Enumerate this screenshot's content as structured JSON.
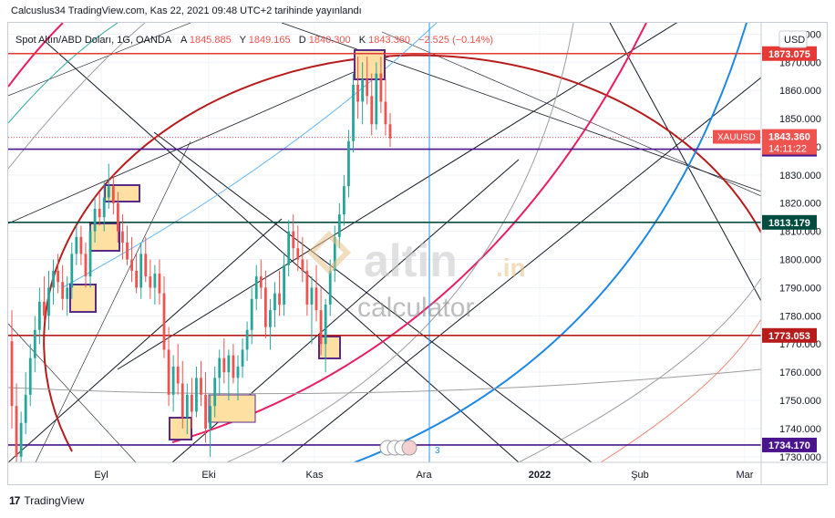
{
  "header": {
    "published_line": "Calcuslus34 TradingView.com, Kas 22, 2021 09:48 UTC+2 tarihinde yayınlandı"
  },
  "legend": {
    "symbol": "Spot Altın/ABD Doları, 1G, OANDA",
    "open_label": "A",
    "open_value": "1845.885",
    "high_label": "Y",
    "high_value": "1849.165",
    "low_label": "D",
    "low_value": "1840.300",
    "close_label": "K",
    "close_value": "1843.360",
    "change": "−2.525 (−0.14%)"
  },
  "currency_button": "USD",
  "watermark": {
    "brand": "altin",
    "domain": ".in",
    "sub": "calculator"
  },
  "footer": {
    "brand": "TradingView",
    "logo": "17"
  },
  "marker_label": "3",
  "colors": {
    "up": "#26a69a",
    "down": "#ef5350",
    "red_line": "#e53935",
    "purple_line": "#4a148c",
    "teal_line": "#004d40",
    "darkred_line": "#b71c1c",
    "gann_circle": "#b71c1c",
    "box_fill": "#ffe0a3",
    "box_stroke": "#5b2a86",
    "blue_arc": "#1e88e5",
    "pink_arc": "#e91e63"
  },
  "chart_data": {
    "type": "candlestick",
    "symbol": "XAUUSD",
    "ylim": [
      1728,
      1884
    ],
    "y_ticks": [
      1730,
      1740,
      1750,
      1760,
      1770,
      1780,
      1790,
      1800,
      1810,
      1820,
      1830,
      1840,
      1850,
      1860,
      1870,
      1880
    ],
    "x_ticks": [
      "Eyl",
      "Eki",
      "Kas",
      "Ara",
      "2022",
      "Şub",
      "Mar"
    ],
    "horizontal_levels": [
      {
        "value": 1873.075,
        "label": "1873.075",
        "color": "#e53935"
      },
      {
        "value": 1839.145,
        "label": "1839.145",
        "color": "#4a148c"
      },
      {
        "value": 1813.179,
        "label": "1813.179",
        "color": "#004d40"
      },
      {
        "value": 1773.053,
        "label": "1773.053",
        "color": "#b71c1c"
      },
      {
        "value": 1734.17,
        "label": "1734.170",
        "color": "#4a148c"
      }
    ],
    "last_price": {
      "symbol_label": "XAUUSD",
      "value": "1843.360",
      "countdown": "14:11:22"
    },
    "candles": [
      [
        1771,
        1782,
        1740,
        1748
      ],
      [
        1748,
        1756,
        1725,
        1730
      ],
      [
        1730,
        1746,
        1722,
        1742
      ],
      [
        1742,
        1760,
        1738,
        1752
      ],
      [
        1752,
        1770,
        1748,
        1765
      ],
      [
        1765,
        1780,
        1760,
        1775
      ],
      [
        1775,
        1790,
        1770,
        1785
      ],
      [
        1785,
        1794,
        1778,
        1780
      ],
      [
        1780,
        1796,
        1775,
        1790
      ],
      [
        1790,
        1800,
        1784,
        1796
      ],
      [
        1796,
        1802,
        1788,
        1792
      ],
      [
        1792,
        1798,
        1782,
        1786
      ],
      [
        1786,
        1794,
        1780,
        1790
      ],
      [
        1790,
        1806,
        1786,
        1802
      ],
      [
        1802,
        1812,
        1798,
        1808
      ],
      [
        1808,
        1812,
        1798,
        1802
      ],
      [
        1802,
        1806,
        1790,
        1794
      ],
      [
        1794,
        1812,
        1790,
        1810
      ],
      [
        1810,
        1822,
        1806,
        1818
      ],
      [
        1818,
        1824,
        1812,
        1815
      ],
      [
        1815,
        1828,
        1810,
        1822
      ],
      [
        1822,
        1834,
        1818,
        1826
      ],
      [
        1826,
        1830,
        1816,
        1820
      ],
      [
        1820,
        1824,
        1806,
        1810
      ],
      [
        1810,
        1816,
        1800,
        1806
      ],
      [
        1806,
        1812,
        1798,
        1800
      ],
      [
        1800,
        1808,
        1792,
        1796
      ],
      [
        1796,
        1802,
        1788,
        1790
      ],
      [
        1790,
        1806,
        1786,
        1802
      ],
      [
        1802,
        1808,
        1792,
        1794
      ],
      [
        1794,
        1800,
        1786,
        1790
      ],
      [
        1790,
        1798,
        1784,
        1795
      ],
      [
        1795,
        1800,
        1784,
        1788
      ],
      [
        1788,
        1794,
        1765,
        1768
      ],
      [
        1768,
        1776,
        1748,
        1752
      ],
      [
        1752,
        1766,
        1746,
        1762
      ],
      [
        1762,
        1770,
        1752,
        1756
      ],
      [
        1756,
        1764,
        1740,
        1744
      ],
      [
        1744,
        1756,
        1738,
        1752
      ],
      [
        1752,
        1758,
        1740,
        1746
      ],
      [
        1746,
        1762,
        1744,
        1758
      ],
      [
        1758,
        1764,
        1748,
        1752
      ],
      [
        1752,
        1760,
        1735,
        1740
      ],
      [
        1740,
        1752,
        1730,
        1748
      ],
      [
        1748,
        1762,
        1744,
        1758
      ],
      [
        1758,
        1768,
        1752,
        1765
      ],
      [
        1765,
        1772,
        1756,
        1760
      ],
      [
        1760,
        1768,
        1750,
        1766
      ],
      [
        1766,
        1770,
        1756,
        1758
      ],
      [
        1758,
        1766,
        1750,
        1762
      ],
      [
        1762,
        1772,
        1758,
        1768
      ],
      [
        1768,
        1778,
        1764,
        1775
      ],
      [
        1775,
        1790,
        1770,
        1786
      ],
      [
        1786,
        1798,
        1782,
        1794
      ],
      [
        1794,
        1800,
        1786,
        1790
      ],
      [
        1790,
        1796,
        1772,
        1776
      ],
      [
        1776,
        1786,
        1768,
        1782
      ],
      [
        1782,
        1792,
        1776,
        1788
      ],
      [
        1788,
        1796,
        1780,
        1784
      ],
      [
        1784,
        1802,
        1780,
        1798
      ],
      [
        1798,
        1814,
        1794,
        1810
      ],
      [
        1810,
        1816,
        1800,
        1804
      ],
      [
        1804,
        1812,
        1796,
        1800
      ],
      [
        1800,
        1808,
        1792,
        1796
      ],
      [
        1796,
        1800,
        1780,
        1784
      ],
      [
        1784,
        1794,
        1770,
        1790
      ],
      [
        1790,
        1798,
        1778,
        1782
      ],
      [
        1782,
        1790,
        1766,
        1770
      ],
      [
        1770,
        1786,
        1760,
        1784
      ],
      [
        1784,
        1800,
        1780,
        1796
      ],
      [
        1796,
        1812,
        1792,
        1808
      ],
      [
        1808,
        1820,
        1804,
        1816
      ],
      [
        1816,
        1830,
        1812,
        1826
      ],
      [
        1826,
        1846,
        1822,
        1842
      ],
      [
        1842,
        1866,
        1838,
        1862
      ],
      [
        1862,
        1872,
        1850,
        1856
      ],
      [
        1856,
        1870,
        1848,
        1864
      ],
      [
        1864,
        1872,
        1855,
        1858
      ],
      [
        1858,
        1866,
        1844,
        1848
      ],
      [
        1848,
        1870,
        1846,
        1866
      ],
      [
        1866,
        1872,
        1852,
        1856
      ],
      [
        1856,
        1864,
        1844,
        1848
      ],
      [
        1848,
        1852,
        1840,
        1843
      ]
    ]
  }
}
